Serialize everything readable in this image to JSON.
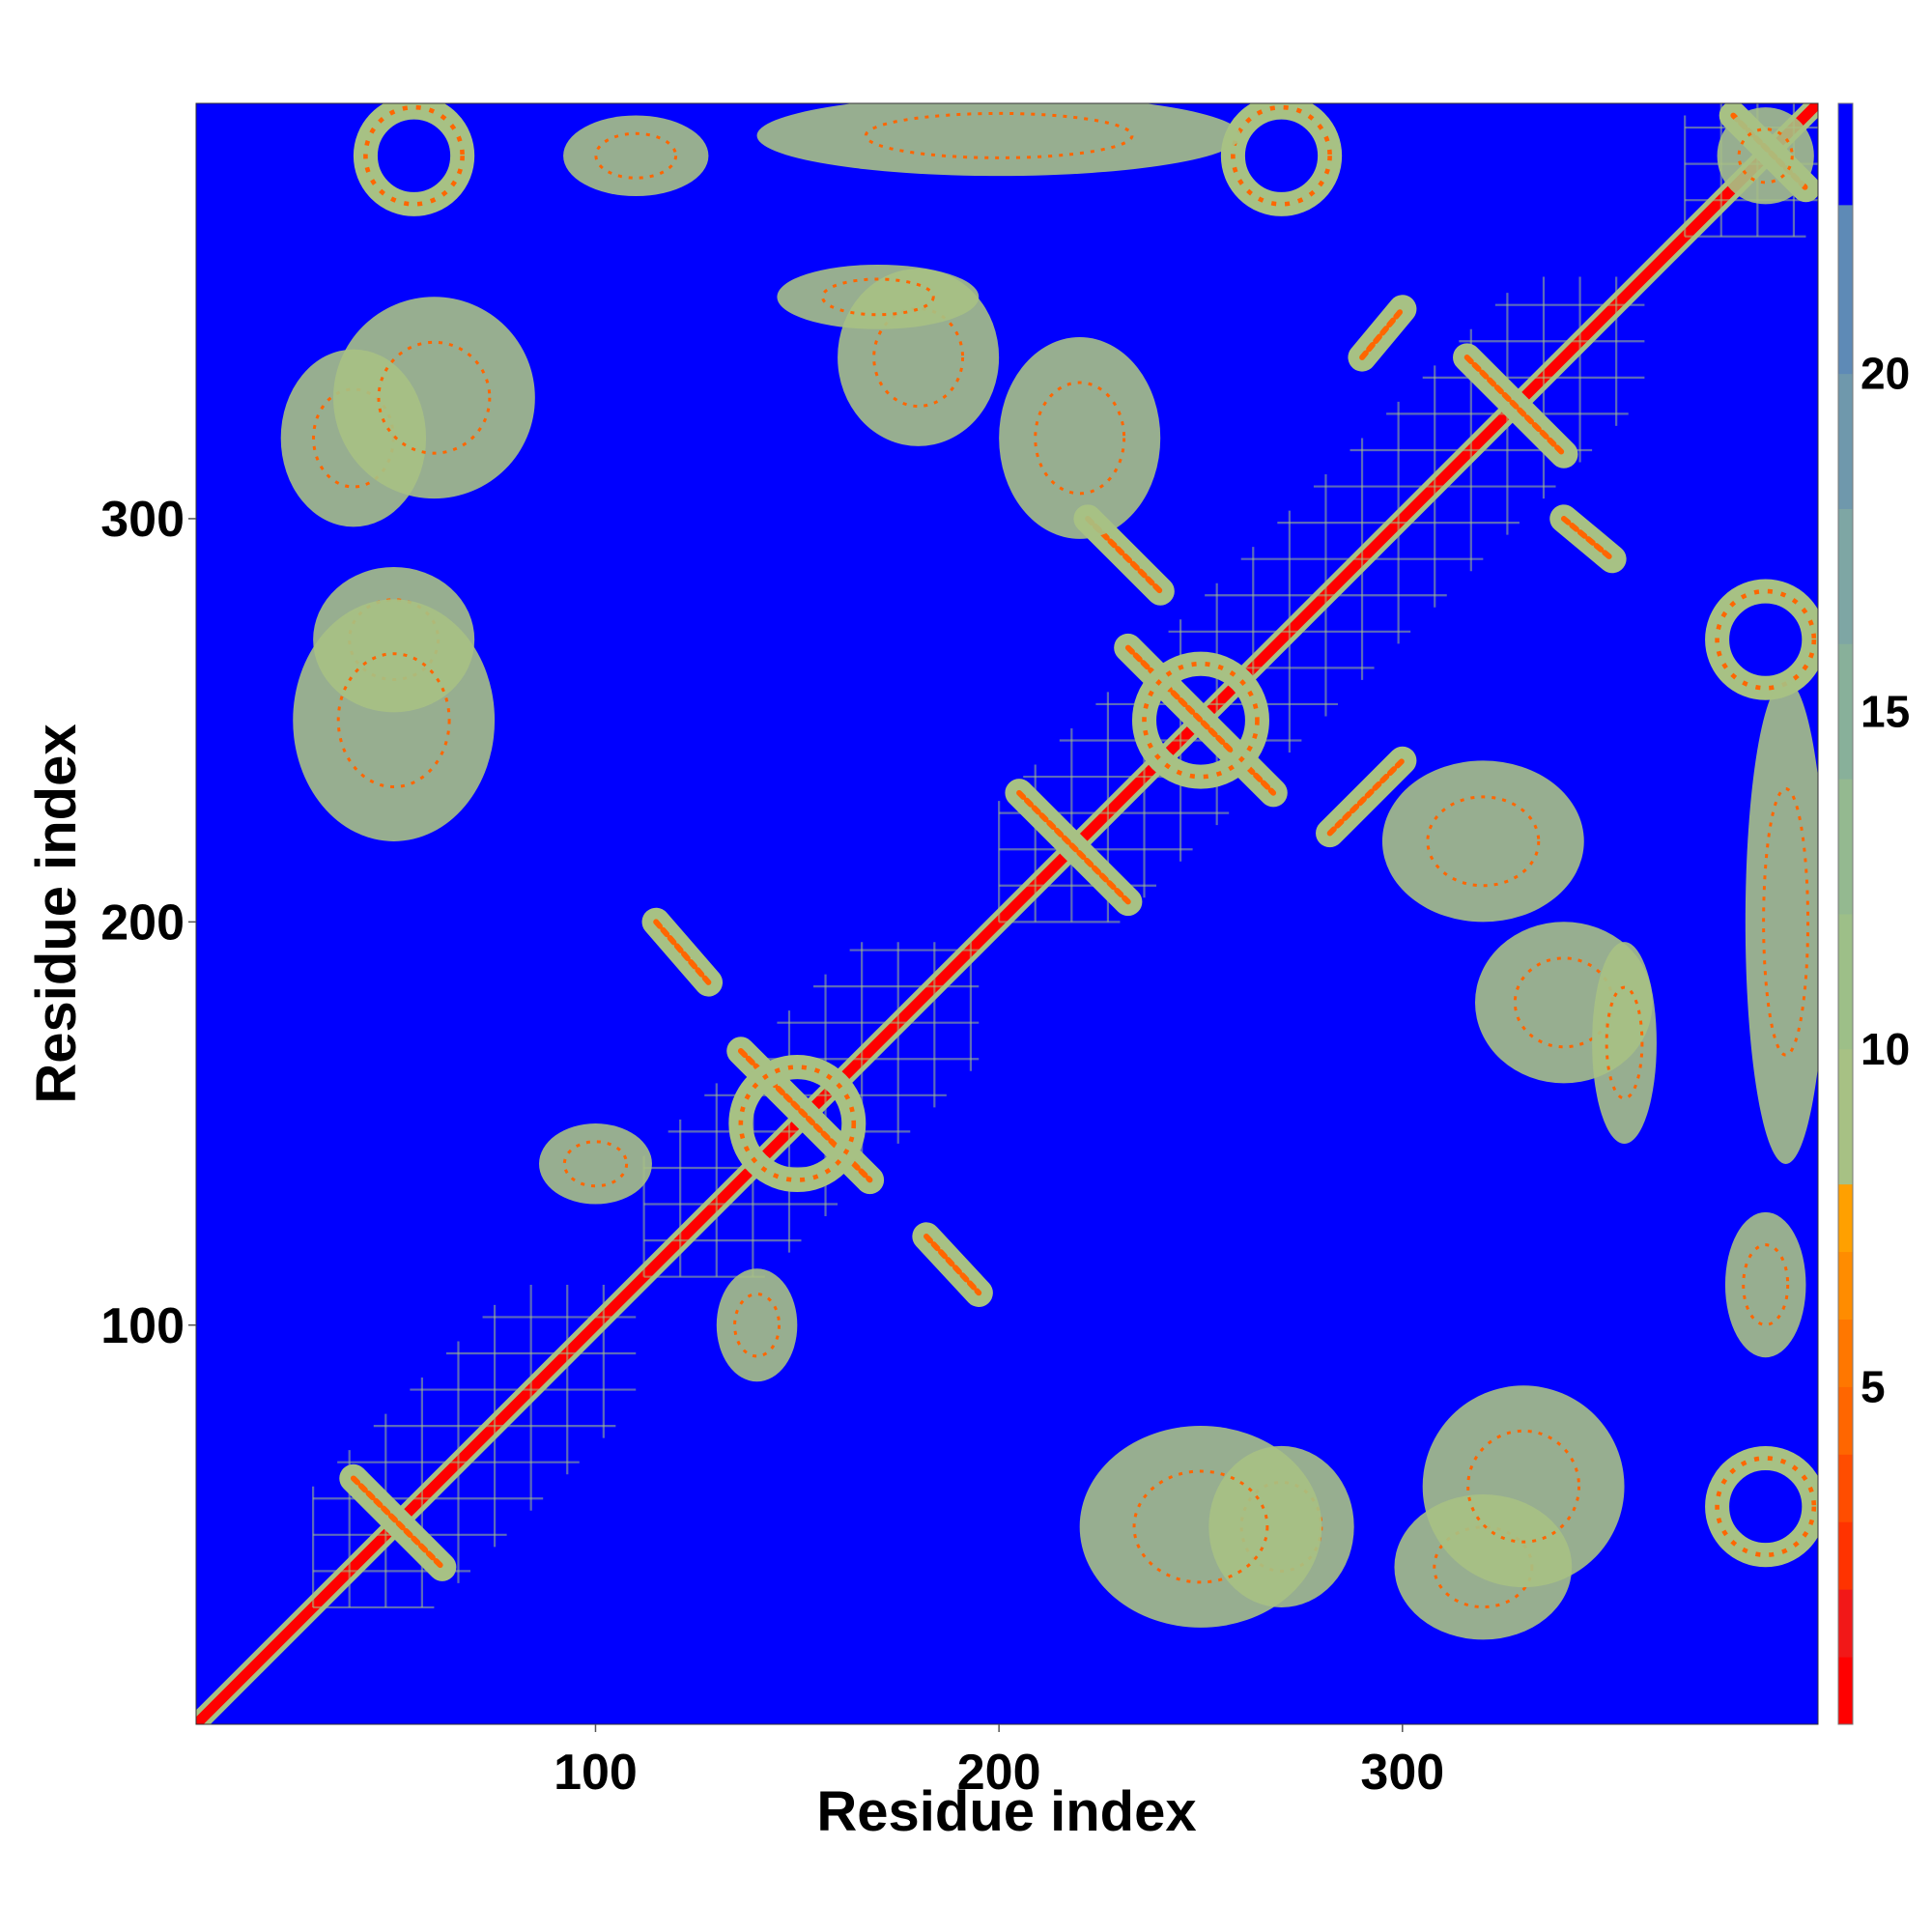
{
  "chart_data": {
    "type": "heatmap",
    "title": "",
    "xlabel": "Residue index",
    "ylabel": "Residue index",
    "xlim": [
      1,
      403
    ],
    "ylim": [
      1,
      403
    ],
    "x_ticks": [
      100,
      200,
      300
    ],
    "y_ticks": [
      100,
      200,
      300
    ],
    "x_tick_labels": [
      "100",
      "200",
      "300"
    ],
    "y_tick_labels": [
      "100",
      "200",
      "300"
    ],
    "grid": false,
    "symmetric": true,
    "value_meaning": "inter-residue distance",
    "colorbar": {
      "placement": "right",
      "range": [
        0,
        24
      ],
      "ticks": [
        5,
        10,
        15,
        20
      ],
      "tick_labels": [
        "5",
        "10",
        "15",
        "20"
      ],
      "bands": [
        {
          "from": 0,
          "to": 1,
          "color": "#ff0000"
        },
        {
          "from": 1,
          "to": 2,
          "color": "#f21818"
        },
        {
          "from": 2,
          "to": 3,
          "color": "#ff3300"
        },
        {
          "from": 3,
          "to": 4,
          "color": "#ff4d00"
        },
        {
          "from": 4,
          "to": 5,
          "color": "#ff6600"
        },
        {
          "from": 5,
          "to": 6,
          "color": "#ff7700"
        },
        {
          "from": 6,
          "to": 7,
          "color": "#ff8c00"
        },
        {
          "from": 7,
          "to": 8,
          "color": "#ffa000"
        },
        {
          "from": 8,
          "to": 10,
          "color": "#a7c184"
        },
        {
          "from": 10,
          "to": 12,
          "color": "#9dbf88"
        },
        {
          "from": 12,
          "to": 14,
          "color": "#94b990"
        },
        {
          "from": 14,
          "to": 16,
          "color": "#88b09a"
        },
        {
          "from": 16,
          "to": 18,
          "color": "#7ea6a4"
        },
        {
          "from": 18,
          "to": 20,
          "color": "#6f98ac"
        },
        {
          "from": 20,
          "to": 22.5,
          "color": "#5e8ab6"
        },
        {
          "from": 22.5,
          "to": 24,
          "color": "#0000ff"
        }
      ]
    },
    "background_color": "#0000ff",
    "diagonal_color": "#ff0000",
    "contact_color": "#a7c184",
    "close_contact_color": "#ff6600",
    "features": [
      {
        "kind": "diagonal",
        "from": 1,
        "to": 403
      },
      {
        "kind": "block",
        "x": [
          30,
          110
        ],
        "y": [
          30,
          110
        ]
      },
      {
        "kind": "block",
        "x": [
          112,
          195
        ],
        "y": [
          112,
          195
        ]
      },
      {
        "kind": "block",
        "x": [
          200,
          360
        ],
        "y": [
          200,
          360
        ]
      },
      {
        "kind": "block",
        "x": [
          370,
          403
        ],
        "y": [
          370,
          403
        ]
      },
      {
        "kind": "antiparallel",
        "x": [
          115,
          128
        ],
        "y": [
          200,
          185
        ]
      },
      {
        "kind": "antiparallel",
        "x": [
          182,
          195
        ],
        "y": [
          122,
          108
        ]
      },
      {
        "kind": "antiparallel",
        "x": [
          205,
          232
        ],
        "y": [
          232,
          205
        ]
      },
      {
        "kind": "antiparallel",
        "x": [
          232,
          268
        ],
        "y": [
          268,
          232
        ]
      },
      {
        "kind": "antiparallel",
        "x": [
          136,
          168
        ],
        "y": [
          168,
          136
        ]
      },
      {
        "kind": "antiparallel",
        "x": [
          40,
          62
        ],
        "y": [
          62,
          40
        ]
      },
      {
        "kind": "antiparallel",
        "x": [
          316,
          340
        ],
        "y": [
          340,
          316
        ]
      },
      {
        "kind": "antiparallel",
        "x": [
          382,
          400
        ],
        "y": [
          400,
          382
        ]
      },
      {
        "kind": "parallel",
        "x": [
          222,
          240
        ],
        "y": [
          300,
          282
        ]
      },
      {
        "kind": "parallel",
        "x": [
          282,
          300
        ],
        "y": [
          222,
          240
        ]
      },
      {
        "kind": "parallel",
        "x": [
          340,
          352
        ],
        "y": [
          300,
          290
        ]
      },
      {
        "kind": "parallel",
        "x": [
          290,
          300
        ],
        "y": [
          340,
          352
        ]
      },
      {
        "kind": "ring",
        "cx": 55,
        "cy": 390,
        "r": 12
      },
      {
        "kind": "ring",
        "cx": 390,
        "cy": 55,
        "r": 12
      },
      {
        "kind": "ring",
        "cx": 270,
        "cy": 390,
        "r": 12
      },
      {
        "kind": "ring",
        "cx": 390,
        "cy": 270,
        "r": 12
      },
      {
        "kind": "ring",
        "cx": 250,
        "cy": 250,
        "r": 14
      },
      {
        "kind": "ring",
        "cx": 150,
        "cy": 150,
        "r": 14
      },
      {
        "kind": "patch",
        "cx": 40,
        "cy": 320,
        "rx": 18,
        "ry": 22
      },
      {
        "kind": "patch",
        "cx": 320,
        "cy": 40,
        "rx": 22,
        "ry": 18
      },
      {
        "kind": "patch",
        "cx": 50,
        "cy": 270,
        "rx": 20,
        "ry": 18
      },
      {
        "kind": "patch",
        "cx": 270,
        "cy": 50,
        "rx": 18,
        "ry": 20
      },
      {
        "kind": "patch",
        "cx": 100,
        "cy": 140,
        "rx": 14,
        "ry": 10
      },
      {
        "kind": "patch",
        "cx": 140,
        "cy": 100,
        "rx": 10,
        "ry": 14
      },
      {
        "kind": "patch",
        "cx": 110,
        "cy": 390,
        "rx": 18,
        "ry": 10
      },
      {
        "kind": "patch",
        "cx": 390,
        "cy": 110,
        "rx": 10,
        "ry": 18
      },
      {
        "kind": "patch",
        "cx": 180,
        "cy": 340,
        "rx": 20,
        "ry": 22
      },
      {
        "kind": "patch",
        "cx": 340,
        "cy": 180,
        "rx": 22,
        "ry": 20
      },
      {
        "kind": "patch",
        "cx": 250,
        "cy": 50,
        "rx": 30,
        "ry": 25
      },
      {
        "kind": "patch",
        "cx": 50,
        "cy": 250,
        "rx": 25,
        "ry": 30
      },
      {
        "kind": "patch",
        "cx": 320,
        "cy": 220,
        "rx": 25,
        "ry": 20
      },
      {
        "kind": "patch",
        "cx": 220,
        "cy": 320,
        "rx": 20,
        "ry": 25
      },
      {
        "kind": "patch",
        "cx": 330,
        "cy": 60,
        "rx": 25,
        "ry": 25
      },
      {
        "kind": "patch",
        "cx": 60,
        "cy": 330,
        "rx": 25,
        "ry": 25
      },
      {
        "kind": "patch",
        "cx": 355,
        "cy": 170,
        "rx": 8,
        "ry": 25
      },
      {
        "kind": "patch",
        "cx": 170,
        "cy": 355,
        "rx": 25,
        "ry": 8
      },
      {
        "kind": "patch",
        "cx": 390,
        "cy": 390,
        "rx": 12,
        "ry": 12
      },
      {
        "kind": "patch",
        "cx": 395,
        "cy": 200,
        "rx": 10,
        "ry": 60
      },
      {
        "kind": "patch",
        "cx": 200,
        "cy": 395,
        "rx": 60,
        "ry": 10
      }
    ]
  }
}
